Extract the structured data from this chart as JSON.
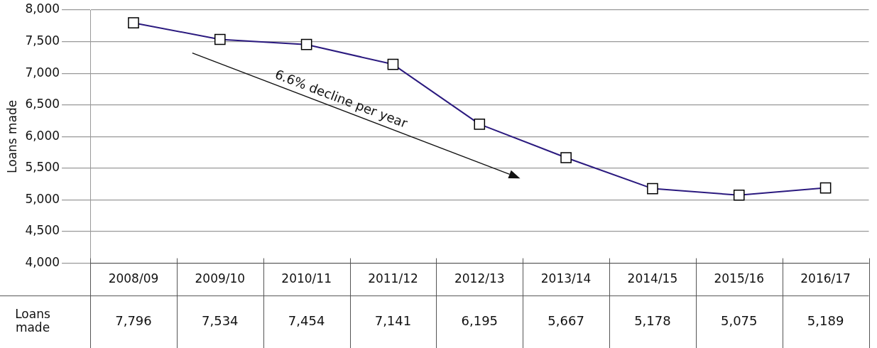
{
  "chart_data": {
    "type": "line",
    "ylabel": "Loans made",
    "categories": [
      "2008/09",
      "2009/10",
      "2010/11",
      "2011/12",
      "2012/13",
      "2013/14",
      "2014/15",
      "2015/16",
      "2016/17"
    ],
    "series": [
      {
        "name": "Loans made",
        "color": "#2b1a7f",
        "values": [
          7796,
          7534,
          7454,
          7141,
          6195,
          5667,
          5178,
          5075,
          5189
        ],
        "value_labels": [
          "7,796",
          "7,534",
          "7,454",
          "7,141",
          "6,195",
          "5,667",
          "5,178",
          "5,075",
          "5,189"
        ]
      }
    ],
    "ylim": [
      4000,
      8000
    ],
    "yticks": [
      {
        "value": 4000,
        "label": "4,000"
      },
      {
        "value": 4500,
        "label": "4,500"
      },
      {
        "value": 5000,
        "label": "5,000"
      },
      {
        "value": 5500,
        "label": "5,500"
      },
      {
        "value": 6000,
        "label": "6,000"
      },
      {
        "value": 6500,
        "label": "6,500"
      },
      {
        "value": 7000,
        "label": "7,000"
      },
      {
        "value": 7500,
        "label": "7,500"
      },
      {
        "value": 8000,
        "label": "8,000"
      }
    ],
    "grid": "y",
    "legend": false,
    "marker": "square",
    "line_style": "solid",
    "annotations": [
      "6.6% decline per year"
    ]
  }
}
